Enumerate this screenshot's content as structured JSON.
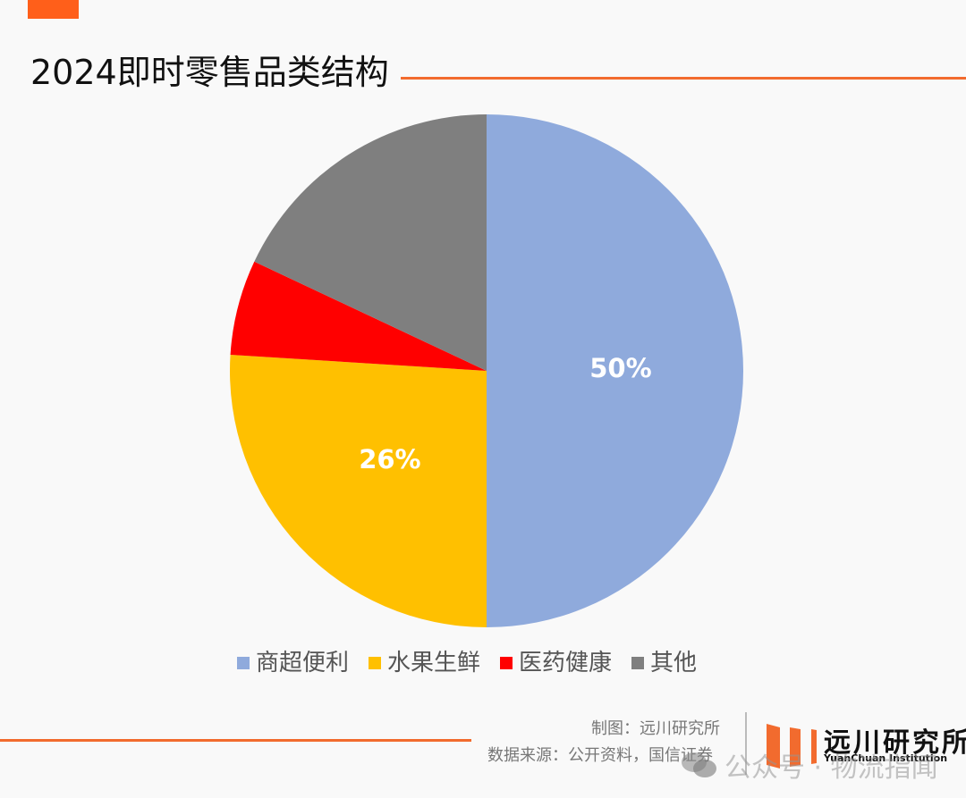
{
  "header": {
    "title": "2024即时零售品类结构",
    "accent_color": "#ff5f1a"
  },
  "chart_data": {
    "type": "pie",
    "title": "2024即时零售品类结构",
    "start_angle_deg": 0,
    "direction": "clockwise",
    "categories": [
      "商超便利",
      "水果生鲜",
      "医药健康",
      "其他"
    ],
    "values": [
      50,
      26,
      6,
      18
    ],
    "colors": [
      "#8faadc",
      "#ffc000",
      "#ff0000",
      "#7f7f7f"
    ],
    "data_labels": [
      "50%",
      "26%",
      "",
      ""
    ],
    "legend_position": "bottom",
    "unit": "%"
  },
  "legend": {
    "items": [
      {
        "label": "商超便利",
        "color": "#8faadc"
      },
      {
        "label": "水果生鲜",
        "color": "#ffc000"
      },
      {
        "label": "医药健康",
        "color": "#ff0000"
      },
      {
        "label": "其他",
        "color": "#7f7f7f"
      }
    ]
  },
  "footer": {
    "credit": "制图：远川研究所",
    "source": "数据来源：公开资料，国信证券",
    "logo_cn": "远川研究所",
    "logo_en": "YuanChuan Institution",
    "watermark": "公众号 · 物流指闻"
  }
}
